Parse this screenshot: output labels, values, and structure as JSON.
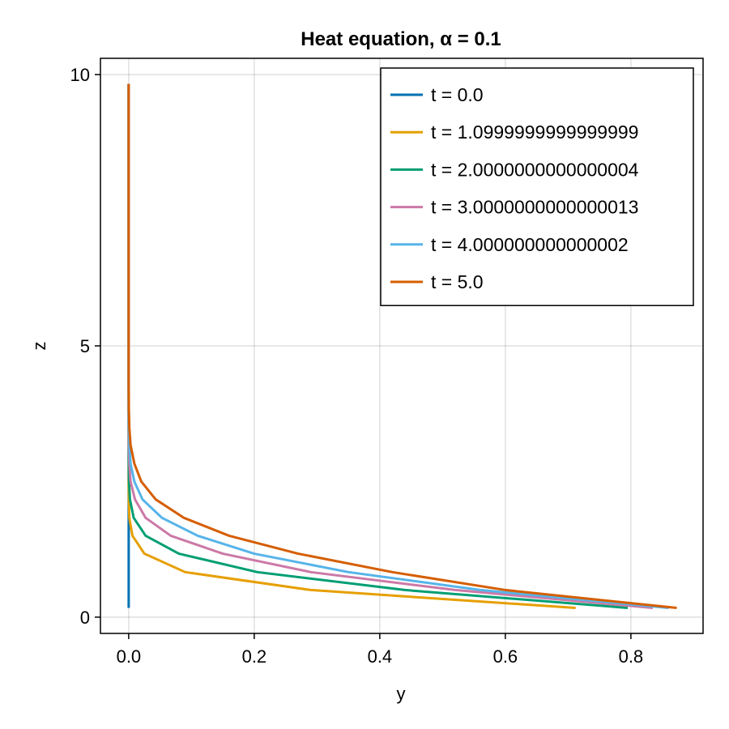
{
  "chart_data": {
    "type": "line",
    "title": "Heat equation, α = 0.1",
    "xlabel": "y",
    "ylabel": "z",
    "xlim": [
      -0.045,
      0.915
    ],
    "ylim": [
      -0.3,
      10.3
    ],
    "xticks": [
      0.0,
      0.2,
      0.4,
      0.6,
      0.8
    ],
    "xtick_labels": [
      "0.0",
      "0.2",
      "0.4",
      "0.6",
      "0.8"
    ],
    "yticks": [
      0,
      5,
      10
    ],
    "ytick_labels": [
      "0",
      "5",
      "10"
    ],
    "grid": true,
    "legend_position": "top-right",
    "series": [
      {
        "name": "t = 0.0",
        "color": "#0072b2",
        "points": [
          [
            0,
            0.17
          ],
          [
            0,
            0.5
          ],
          [
            0,
            1.0
          ],
          [
            0,
            2.0
          ],
          [
            0,
            3.0
          ],
          [
            0,
            5.0
          ],
          [
            0,
            7.0
          ],
          [
            0,
            9.83
          ]
        ]
      },
      {
        "name": "t = 1.0999999999999999",
        "color": "#e69f00",
        "points": [
          [
            0.712,
            0.17
          ],
          [
            0.29,
            0.5
          ],
          [
            0.09,
            0.83
          ],
          [
            0.025,
            1.17
          ],
          [
            0.006,
            1.5
          ],
          [
            0.001,
            1.83
          ],
          [
            0.0002,
            2.17
          ],
          [
            0,
            2.5
          ],
          [
            0,
            3.5
          ],
          [
            0,
            5
          ],
          [
            0,
            7
          ],
          [
            0,
            9.83
          ]
        ]
      },
      {
        "name": "t = 2.0000000000000004",
        "color": "#009e73",
        "points": [
          [
            0.795,
            0.17
          ],
          [
            0.44,
            0.5
          ],
          [
            0.205,
            0.83
          ],
          [
            0.08,
            1.17
          ],
          [
            0.027,
            1.5
          ],
          [
            0.008,
            1.83
          ],
          [
            0.002,
            2.17
          ],
          [
            0.0005,
            2.5
          ],
          [
            0.0001,
            2.83
          ],
          [
            0,
            3.2
          ],
          [
            0,
            5
          ],
          [
            0,
            7
          ],
          [
            0,
            9.83
          ]
        ]
      },
      {
        "name": "t = 3.0000000000000013",
        "color": "#cc79a7",
        "points": [
          [
            0.835,
            0.17
          ],
          [
            0.52,
            0.5
          ],
          [
            0.29,
            0.83
          ],
          [
            0.15,
            1.17
          ],
          [
            0.067,
            1.5
          ],
          [
            0.027,
            1.83
          ],
          [
            0.01,
            2.17
          ],
          [
            0.003,
            2.5
          ],
          [
            0.001,
            2.83
          ],
          [
            0.0002,
            3.17
          ],
          [
            0,
            3.5
          ],
          [
            0,
            5
          ],
          [
            0,
            7
          ],
          [
            0,
            9.83
          ]
        ]
      },
      {
        "name": "t = 4.000000000000002",
        "color": "#56b4e9",
        "points": [
          [
            0.86,
            0.17
          ],
          [
            0.56,
            0.5
          ],
          [
            0.35,
            0.83
          ],
          [
            0.2,
            1.17
          ],
          [
            0.11,
            1.5
          ],
          [
            0.053,
            1.83
          ],
          [
            0.022,
            2.17
          ],
          [
            0.009,
            2.5
          ],
          [
            0.003,
            2.83
          ],
          [
            0.001,
            3.17
          ],
          [
            0.0003,
            3.5
          ],
          [
            0,
            4.0
          ],
          [
            0,
            5
          ],
          [
            0,
            7
          ],
          [
            0,
            9.83
          ]
        ]
      },
      {
        "name": "t = 5.0",
        "color": "#d55e00",
        "points": [
          [
            0.873,
            0.17
          ],
          [
            0.6,
            0.5
          ],
          [
            0.42,
            0.83
          ],
          [
            0.27,
            1.17
          ],
          [
            0.16,
            1.5
          ],
          [
            0.088,
            1.83
          ],
          [
            0.043,
            2.17
          ],
          [
            0.02,
            2.5
          ],
          [
            0.009,
            2.83
          ],
          [
            0.003,
            3.17
          ],
          [
            0.001,
            3.5
          ],
          [
            0.0003,
            3.83
          ],
          [
            0,
            4.3
          ],
          [
            0,
            5
          ],
          [
            0,
            7
          ],
          [
            0,
            9.83
          ]
        ]
      }
    ]
  }
}
